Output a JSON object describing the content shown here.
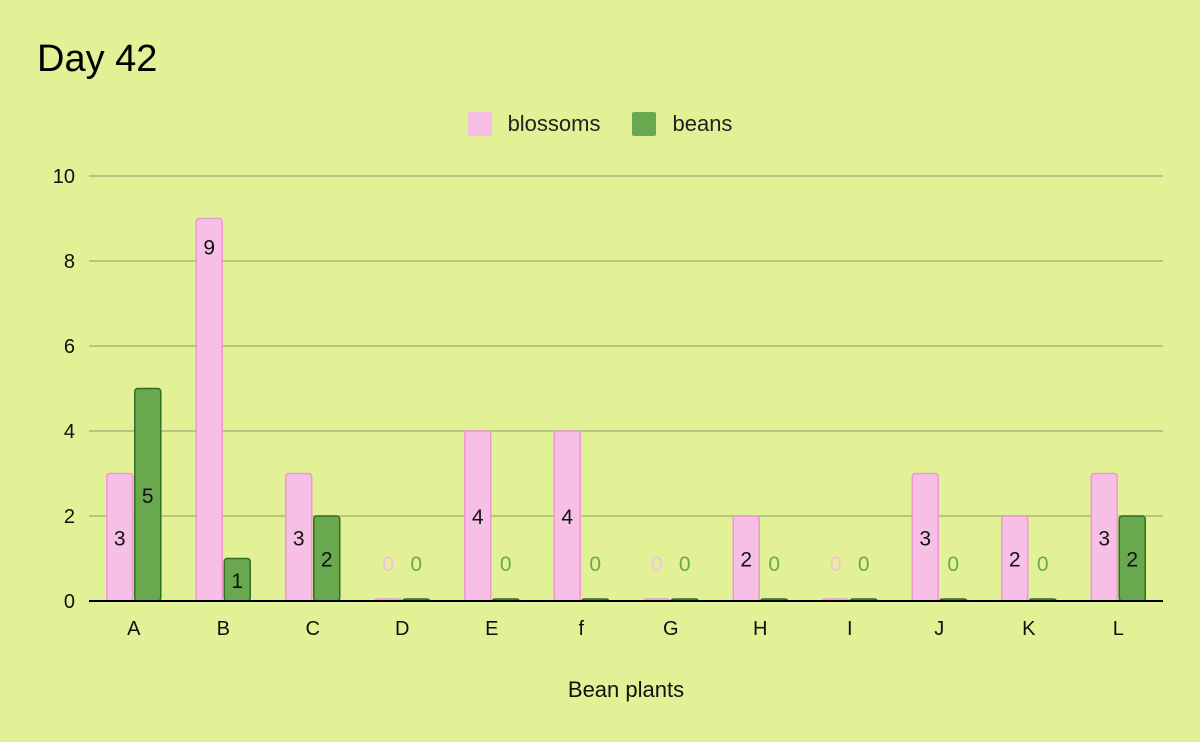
{
  "colors": {
    "background": "#e2f096",
    "blossoms_fill": "#f8bfe6",
    "blossoms_stroke": "#ef97d3",
    "beans_fill": "#6aa84f",
    "beans_stroke": "#2f6f1f",
    "grid": "#a7b87b",
    "axis": "#000000"
  },
  "chart_data": {
    "type": "bar",
    "title": "Day 42",
    "xlabel": "Bean plants",
    "ylabel": "",
    "ylim": [
      0,
      10
    ],
    "yticks": [
      0,
      2,
      4,
      6,
      8,
      10
    ],
    "grid": true,
    "legend_position": "top-center",
    "categories": [
      "A",
      "B",
      "C",
      "D",
      "E",
      "f",
      "G",
      "H",
      "I",
      "J",
      "K",
      "L"
    ],
    "series": [
      {
        "name": "blossoms",
        "values": [
          3,
          9,
          3,
          0,
          4,
          4,
          0,
          2,
          0,
          3,
          2,
          3
        ]
      },
      {
        "name": "beans",
        "values": [
          5,
          1,
          2,
          0,
          0,
          0,
          0,
          0,
          0,
          0,
          0,
          2
        ]
      }
    ]
  }
}
